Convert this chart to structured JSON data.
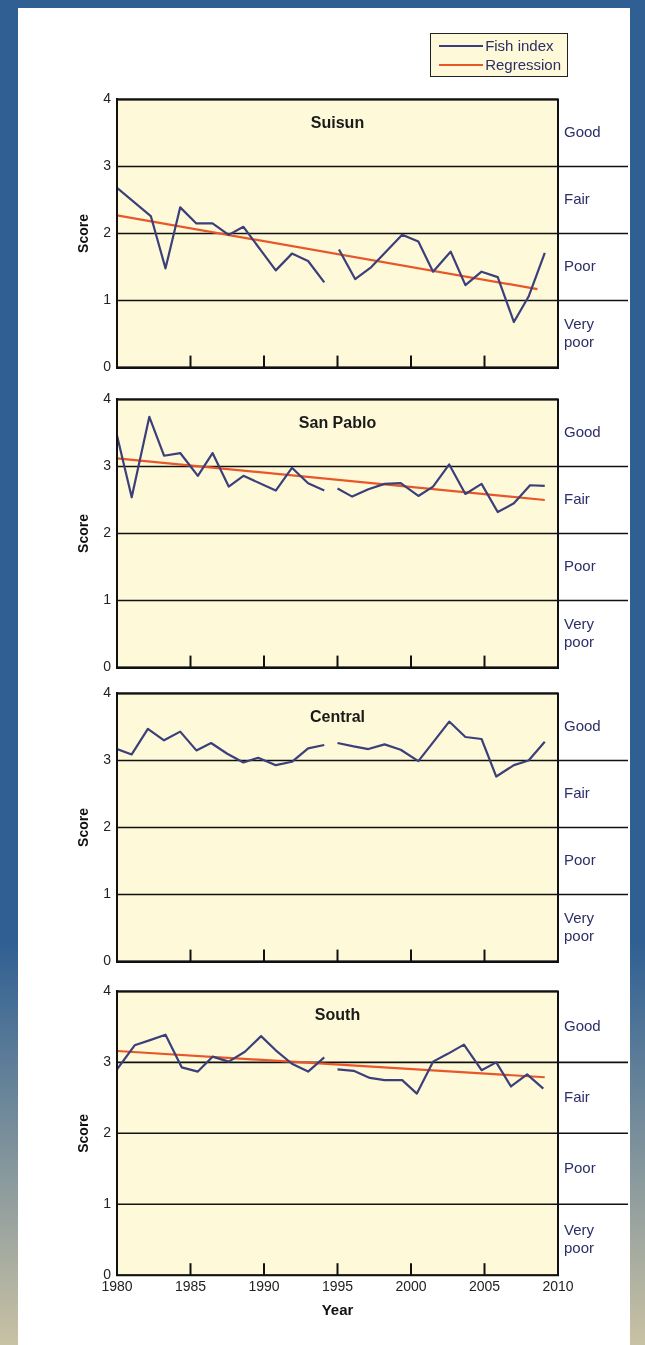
{
  "chart_data": [
    {
      "type": "line",
      "title": "Suisun",
      "ylabel": "Score",
      "xlim": [
        1980,
        2010
      ],
      "xticks": [
        1980,
        1985,
        1990,
        1995,
        2000,
        2005,
        2010
      ],
      "ylim": [
        0,
        4
      ],
      "yticks": [
        0,
        1,
        2,
        3,
        4
      ],
      "annotations": [
        "Good",
        "Fair",
        "Poor",
        "Very poor"
      ],
      "tick_labels": "y",
      "grid": "y",
      "legend": "top right",
      "series": [
        {
          "name": "Fish index",
          "color": "#3b3f7a",
          "x": [
            1980,
            1982.3,
            1983.3,
            1984.3,
            1985.4,
            1986.5,
            1987.6,
            1988.6,
            1990.8,
            1991.9,
            1993.0,
            1994.1,
            1994.6,
            1995.1,
            1996.2,
            1997.3,
            1999.4,
            2000.5,
            2001.5,
            2002.7,
            2003.7,
            2004.8,
            2005.9,
            2007.0,
            2008.0,
            2009.1
          ],
          "values": [
            2.68,
            2.26,
            1.48,
            2.39,
            2.15,
            2.15,
            1.98,
            2.1,
            1.45,
            1.7,
            1.59,
            1.27,
            null,
            1.76,
            1.32,
            1.5,
            1.98,
            1.88,
            1.43,
            1.73,
            1.23,
            1.43,
            1.35,
            0.68,
            1.06,
            1.71
          ]
        },
        {
          "name": "Regression",
          "color": "#e8562a",
          "x": [
            1980,
            2008.6
          ],
          "values": [
            2.27,
            1.17
          ]
        }
      ]
    },
    {
      "type": "line",
      "title": "San Pablo",
      "ylabel": "Score",
      "xlim": [
        1980,
        2010
      ],
      "xticks": [
        1980,
        1985,
        1990,
        1995,
        2000,
        2005,
        2010
      ],
      "ylim": [
        0,
        4
      ],
      "yticks": [
        0,
        1,
        2,
        3,
        4
      ],
      "annotations": [
        "Good",
        "Fair",
        "Poor",
        "Very poor"
      ],
      "tick_labels": "y",
      "grid": "y",
      "series": [
        {
          "color": "#3b3f7a",
          "x": [
            1980,
            1981,
            1982.2,
            1983.2,
            1984.3,
            1985.5,
            1986.5,
            1987.6,
            1988.6,
            1990.8,
            1991.9,
            1993.0,
            1994.1,
            1994.6,
            1995,
            1996,
            1997.1,
            1998.2,
            1999.3,
            2000.5,
            2001.5,
            2002.6,
            2003.7,
            2004.8,
            2005.9,
            2007.0,
            2008.1,
            2009.1
          ],
          "values": [
            3.46,
            2.54,
            3.74,
            3.16,
            3.2,
            2.86,
            3.2,
            2.7,
            2.86,
            2.64,
            2.98,
            2.75,
            2.64,
            null,
            2.67,
            2.55,
            2.66,
            2.74,
            2.75,
            2.56,
            2.7,
            3.03,
            2.59,
            2.74,
            2.32,
            2.45,
            2.72,
            2.71
          ]
        },
        {
          "color": "#e8562a",
          "x": [
            1980,
            2009.1
          ],
          "values": [
            3.12,
            2.5
          ]
        }
      ]
    },
    {
      "type": "line",
      "title": "Central",
      "ylabel": "Score",
      "xlim": [
        1980,
        2010
      ],
      "xticks": [
        1980,
        1985,
        1990,
        1995,
        2000,
        2005,
        2010
      ],
      "ylim": [
        0,
        4
      ],
      "yticks": [
        0,
        1,
        2,
        3,
        4
      ],
      "annotations": [
        "Good",
        "Fair",
        "Poor",
        "Very poor"
      ],
      "tick_labels": "y",
      "grid": "y",
      "series": [
        {
          "color": "#3b3f7a",
          "x": [
            1980,
            1981,
            1982.1,
            1983.2,
            1984.3,
            1985.4,
            1986.4,
            1987.5,
            1988.6,
            1989.6,
            1990.8,
            1991.9,
            1993.0,
            1994.1,
            1994.6,
            1995,
            1996.1,
            1997.1,
            1998.2,
            1999.3,
            2000.5,
            2001.5,
            2002.6,
            2003.7,
            2004.8,
            2005.8,
            2007.0,
            2008.0,
            2009.1
          ],
          "values": [
            3.17,
            3.09,
            3.47,
            3.3,
            3.43,
            3.15,
            3.26,
            3.1,
            2.97,
            3.04,
            2.93,
            2.98,
            3.18,
            3.23,
            null,
            3.26,
            3.21,
            3.17,
            3.24,
            3.16,
            2.99,
            3.27,
            3.58,
            3.35,
            3.32,
            2.76,
            2.93,
            3.0,
            3.28
          ]
        }
      ]
    },
    {
      "type": "line",
      "title": "South",
      "xlabel": "Year",
      "ylabel": "Score",
      "xlim": [
        1980,
        2010
      ],
      "xticks": [
        1980,
        1985,
        1990,
        1995,
        2000,
        2005,
        2010
      ],
      "ylim": [
        0,
        4
      ],
      "yticks": [
        0,
        1,
        2,
        3,
        4
      ],
      "annotations": [
        "Good",
        "Fair",
        "Poor",
        "Very poor"
      ],
      "grid": "y",
      "series": [
        {
          "color": "#3b3f7a",
          "x": [
            1980,
            1981.2,
            1982.2,
            1983.3,
            1984.4,
            1985.5,
            1986.5,
            1987.6,
            1988.7,
            1989.8,
            1990.8,
            1991.9,
            1993.0,
            1994.1,
            1994.6,
            1995,
            1996.1,
            1997.2,
            1998.2,
            1999.4,
            2000.4,
            2001.5,
            2002.5,
            2003.6,
            2004.8,
            2005.8,
            2006.8,
            2007.9,
            2009.0
          ],
          "values": [
            2.9,
            3.24,
            3.31,
            3.39,
            2.93,
            2.87,
            3.08,
            3.01,
            3.15,
            3.37,
            3.17,
            2.98,
            2.87,
            3.07,
            null,
            2.9,
            2.88,
            2.78,
            2.75,
            2.75,
            2.56,
            3.01,
            3.12,
            3.25,
            2.89,
            3.0,
            2.66,
            2.83,
            2.63
          ]
        },
        {
          "color": "#e8562a",
          "x": [
            1980,
            2009.1
          ],
          "values": [
            3.16,
            2.79
          ]
        }
      ]
    }
  ]
}
